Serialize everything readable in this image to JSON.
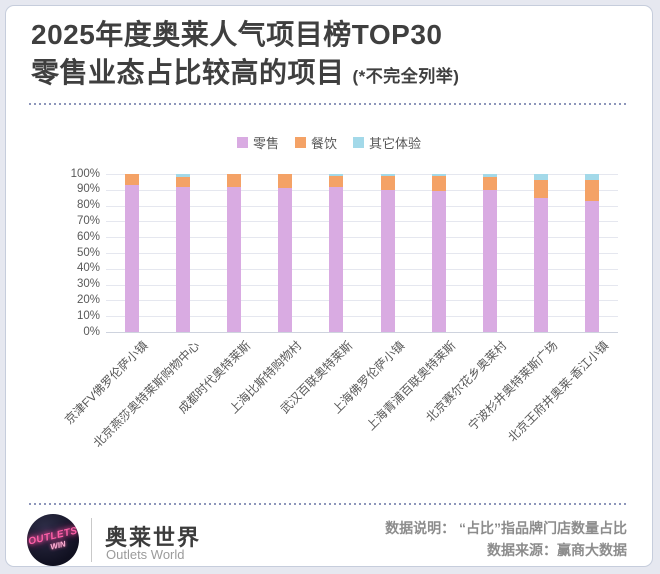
{
  "header": {
    "title_line1": "2025年度奥莱人气项目榜TOP30",
    "title_line2": "零售业态占比较高的项目",
    "title_note": "(*不完全列举)"
  },
  "chart_data": {
    "type": "bar",
    "stacked": true,
    "stacked_total": 100,
    "grid": true,
    "legend_position": "top",
    "ylim": [
      0,
      100
    ],
    "y_ticks": [
      "100%",
      "90%",
      "80%",
      "70%",
      "60%",
      "50%",
      "40%",
      "30%",
      "20%",
      "10%",
      "0%"
    ],
    "categories": [
      "京津FV佛罗伦萨小镇",
      "北京燕莎奥特莱斯购物中心",
      "成都时代奥特莱斯",
      "上海比斯特购物村",
      "武汉百联奥特莱斯",
      "上海佛罗伦萨小镇",
      "上海青浦百联奥特莱斯",
      "北京赛尔花乡奥莱村",
      "宁波杉井奥特莱斯广场",
      "北京王府井奥莱-香江小镇"
    ],
    "series": [
      {
        "name": "零售",
        "color": "#d9abe2",
        "values": [
          93,
          92,
          92,
          91,
          92,
          90,
          89,
          90,
          85,
          83
        ]
      },
      {
        "name": "餐饮",
        "color": "#f4a266",
        "values": [
          7,
          6,
          8,
          9,
          7,
          9,
          10,
          8,
          11,
          13
        ]
      },
      {
        "name": "其它体验",
        "color": "#a3d9e9",
        "values": [
          0,
          2,
          0,
          0,
          1,
          1,
          1,
          2,
          4,
          4
        ]
      }
    ]
  },
  "footer": {
    "logo_line1": "OUTLETS",
    "logo_line2": "WIN",
    "brand_name": "奥莱世界",
    "brand_name_en": "Outlets World",
    "note_line1": "数据说明： “占比”指品牌门店数量占比",
    "note_line2": "数据来源：赢商大数据"
  }
}
